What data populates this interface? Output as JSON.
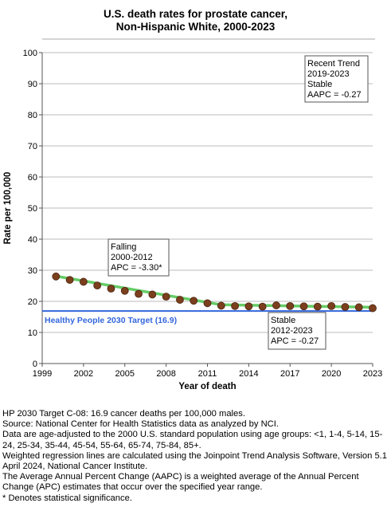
{
  "chart_data": {
    "type": "line",
    "title": [
      "U.S. death rates for prostate cancer,",
      "Non-Hispanic White,  2000-2023"
    ],
    "xlabel": "Year of death",
    "ylabel": "Rate per 100,000",
    "xlim": [
      1999,
      2023
    ],
    "ylim": [
      0,
      100
    ],
    "x_ticks": [
      1999,
      2002,
      2005,
      2008,
      2011,
      2014,
      2017,
      2020,
      2023
    ],
    "y_ticks": [
      0,
      10,
      20,
      30,
      40,
      50,
      60,
      70,
      80,
      90,
      100
    ],
    "grid": true,
    "observed": {
      "x": [
        2000,
        2001,
        2002,
        2003,
        2004,
        2005,
        2006,
        2007,
        2008,
        2009,
        2010,
        2011,
        2012,
        2013,
        2014,
        2015,
        2016,
        2017,
        2018,
        2019,
        2020,
        2021,
        2022,
        2023
      ],
      "y": [
        28.0,
        26.9,
        26.3,
        25.1,
        24.1,
        23.4,
        22.4,
        22.2,
        21.5,
        20.5,
        20.2,
        19.4,
        18.6,
        18.5,
        18.4,
        18.3,
        18.7,
        18.5,
        18.4,
        18.3,
        18.5,
        18.2,
        18.1,
        17.8
      ],
      "color": "#7b3f1d"
    },
    "trend_segments": [
      {
        "x": [
          2000,
          2012
        ],
        "y": [
          28.1,
          18.9
        ],
        "color": "#66cc66"
      },
      {
        "x": [
          2012,
          2023
        ],
        "y": [
          18.9,
          18.1
        ],
        "color": "#66cc66"
      }
    ],
    "target": {
      "value": 16.9,
      "label": "Healthy People 2030 Target (16.9)",
      "color": "#3366dd"
    },
    "annotations": [
      {
        "lines": [
          "Falling",
          "2000-2012",
          "APC = -3.30*"
        ],
        "placement": "above-left-trend"
      },
      {
        "lines": [
          "Stable",
          "2012-2023",
          "APC = -0.27"
        ],
        "placement": "below-right-trend"
      },
      {
        "lines": [
          "Recent Trend",
          "2019-2023",
          "Stable",
          "AAPC = -0.27"
        ],
        "placement": "top-right"
      }
    ]
  },
  "footnotes": [
    "HP 2030 Target C-08: 16.9 cancer deaths per 100,000 males.",
    "Source: National Center for Health Statistics data as analyzed by NCI.",
    "Data are age-adjusted to the 2000 U.S. standard population using age groups: <1, 1-4, 5-14, 15-24, 25-34, 35-44, 45-54, 55-64, 65-74, 75-84, 85+.",
    "Weighted regression lines are calculated using the Joinpoint Trend Analysis Software, Version 5.1 April 2024, National Cancer Institute.",
    "The Average Annual Percent Change (AAPC) is a weighted average of the Annual Percent Change (APC) estimates that occur over the specified year range.",
    "* Denotes statistical significance."
  ]
}
